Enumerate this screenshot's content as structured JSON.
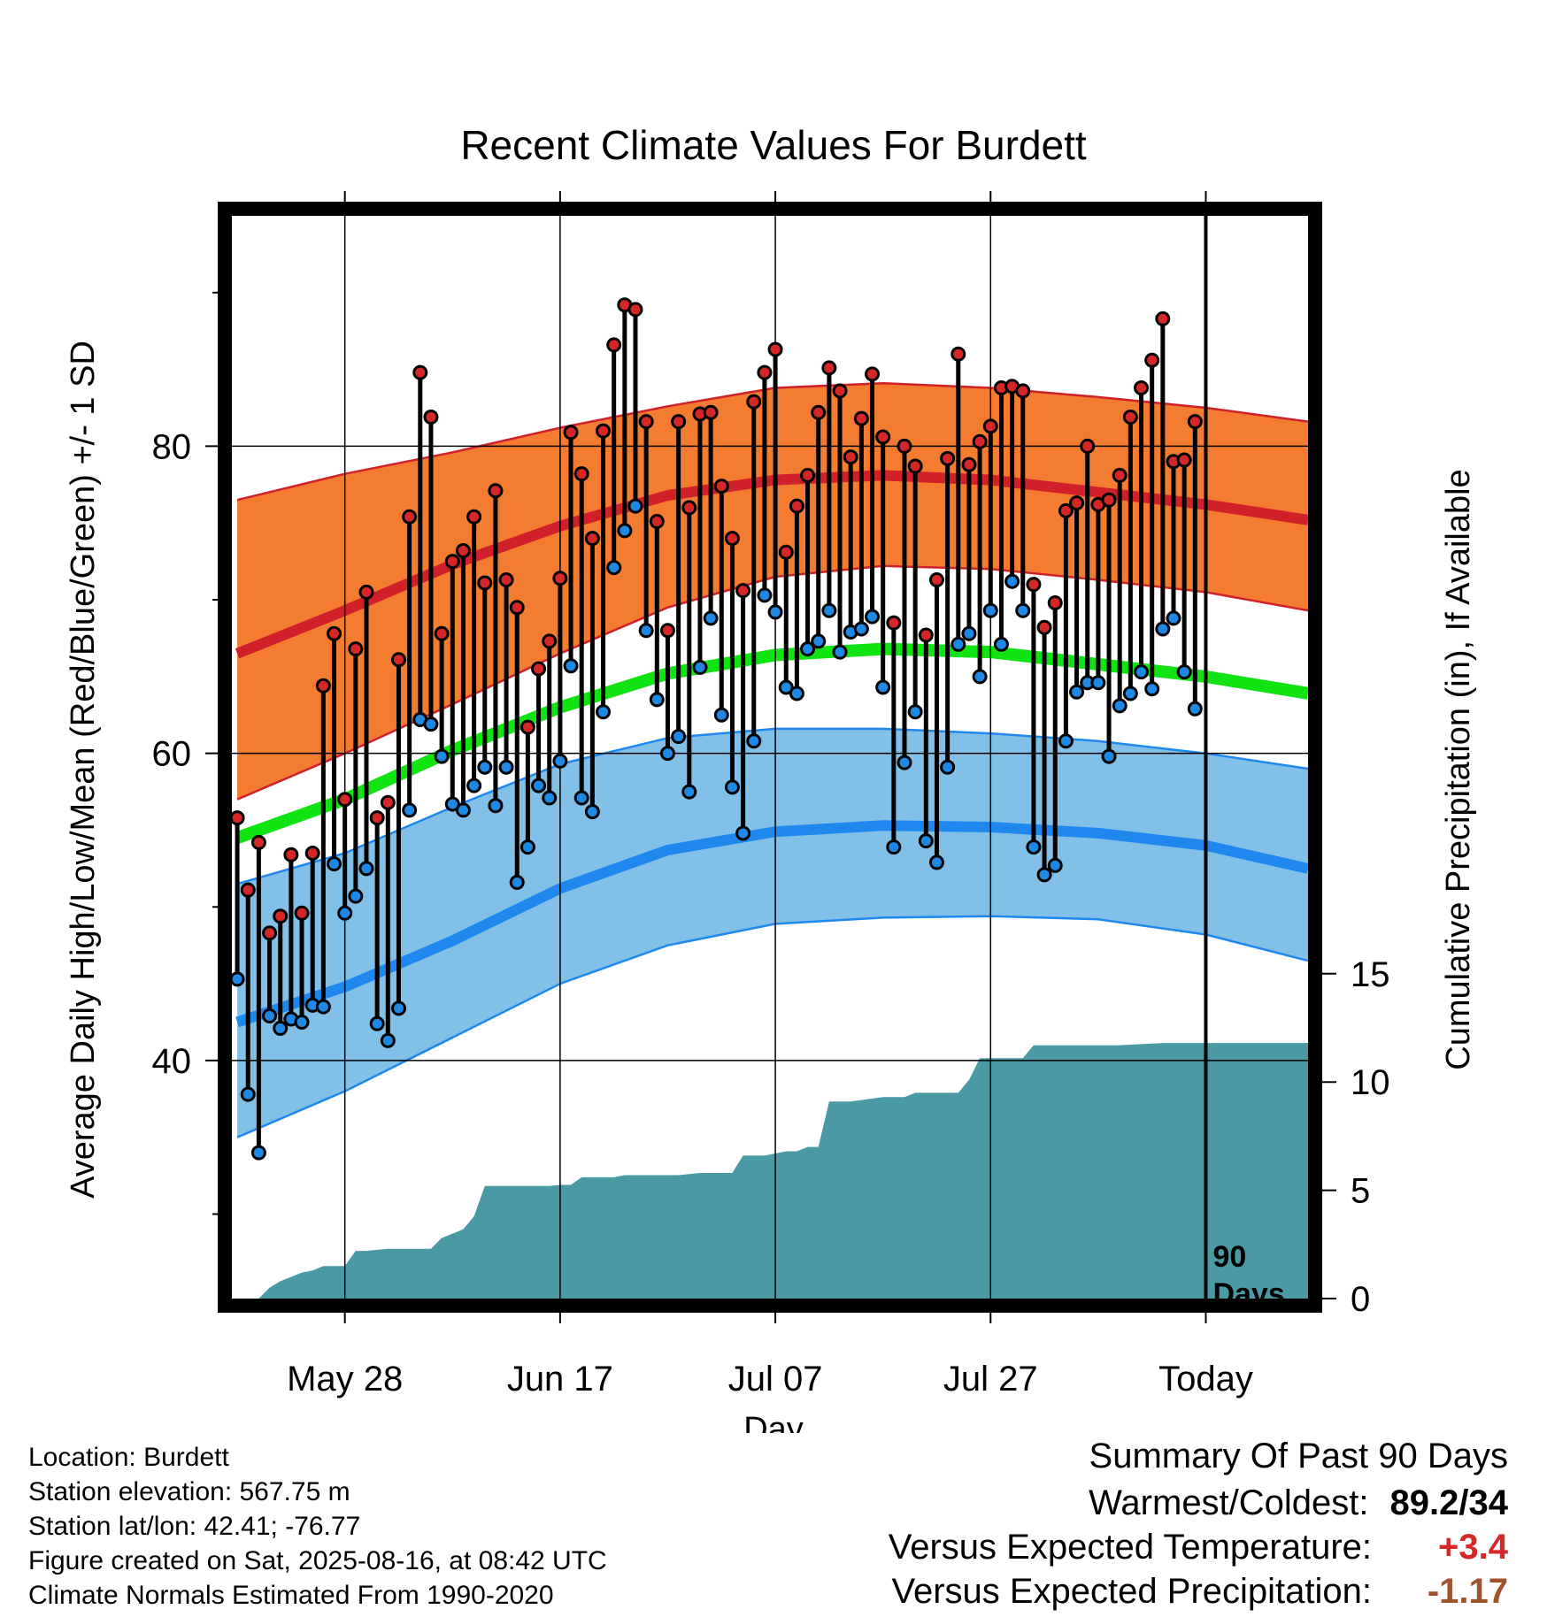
{
  "chart_data": {
    "type": "line",
    "title": "Recent Climate Values For Burdett",
    "xlabel": "Day",
    "ylabel": "Average Daily High/Low/Mean (Red/Blue/Green) +/- 1 SD",
    "y2label": "Cumulative Precipitation (in), If Available",
    "x_tick_labels": [
      "May 28",
      "Jun 17",
      "Jul 07",
      "Jul 27",
      "Today"
    ],
    "x_tick_days": [
      10,
      30,
      50,
      70,
      90
    ],
    "xlim": [
      -0.5,
      99.5
    ],
    "ylim": [
      24.5,
      95
    ],
    "y_ticks": [
      40,
      60,
      80
    ],
    "y_minor_ticks": [
      30,
      50,
      70,
      90
    ],
    "y2_ticks": [
      0,
      5,
      10,
      15
    ],
    "y2_scale": {
      "min": 0,
      "max": 50
    },
    "grid": true,
    "today_marker": {
      "day": 90,
      "label_top": "90",
      "label_bottom": "Days"
    },
    "normals": {
      "days": [
        0,
        10,
        20,
        30,
        40,
        50,
        60,
        70,
        80,
        90,
        99.5
      ],
      "high_mean": [
        66.5,
        69.3,
        72.3,
        74.8,
        76.8,
        77.8,
        78.1,
        77.8,
        77.0,
        76.2,
        75.2
      ],
      "high_upper": [
        76.5,
        78.2,
        79.6,
        81.2,
        82.6,
        83.8,
        84.1,
        83.8,
        83.2,
        82.5,
        81.6
      ],
      "high_lower": [
        57.0,
        60.0,
        63.2,
        66.5,
        69.5,
        71.5,
        72.2,
        72.0,
        71.3,
        70.5,
        69.3
      ],
      "mean": [
        54.5,
        57.0,
        60.2,
        63.0,
        65.2,
        66.4,
        66.8,
        66.6,
        65.8,
        65.0,
        63.9
      ],
      "low_mean": [
        42.5,
        44.8,
        47.8,
        51.2,
        53.7,
        54.9,
        55.3,
        55.2,
        54.8,
        54.0,
        52.5
      ],
      "low_upper": [
        51.5,
        53.5,
        56.5,
        59.3,
        61.0,
        61.6,
        61.6,
        61.3,
        60.8,
        60.0,
        59.0
      ],
      "low_lower": [
        35.0,
        38.0,
        41.5,
        45.0,
        47.5,
        48.9,
        49.3,
        49.4,
        49.2,
        48.2,
        46.5
      ]
    },
    "series": [
      {
        "name": "High",
        "color": "#d62728",
        "values": [
          55.8,
          51.1,
          54.2,
          48.3,
          49.4,
          53.4,
          49.6,
          53.5,
          64.4,
          67.8,
          57.0,
          66.8,
          70.5,
          55.8,
          56.8,
          66.1,
          75.4,
          84.8,
          81.9,
          67.8,
          72.5,
          73.2,
          75.4,
          71.1,
          77.1,
          71.3,
          69.5,
          61.7,
          65.5,
          67.3,
          71.4,
          80.9,
          78.2,
          74.0,
          81.0,
          86.6,
          89.2,
          88.9,
          81.6,
          75.1,
          68.0,
          81.6,
          76.0,
          82.1,
          82.2,
          77.4,
          74.0,
          70.6,
          82.9,
          84.8,
          86.3,
          73.1,
          76.1,
          78.1,
          82.2,
          85.1,
          83.6,
          79.3,
          81.8,
          84.7,
          80.6,
          68.5,
          80.0,
          78.7,
          67.7,
          71.3,
          79.2,
          86.0,
          78.8,
          80.3,
          81.3,
          83.8,
          83.9,
          83.6,
          71.0,
          68.2,
          69.8,
          75.8,
          76.3,
          80.0,
          76.2,
          76.5,
          78.1,
          81.9,
          83.8,
          85.6,
          88.3,
          79.0,
          79.1,
          81.6
        ]
      },
      {
        "name": "Low",
        "color": "#1e88e5",
        "values": [
          45.3,
          37.8,
          34.0,
          42.9,
          42.1,
          42.7,
          42.5,
          43.6,
          43.5,
          52.8,
          49.6,
          50.7,
          52.5,
          42.4,
          41.3,
          43.4,
          56.3,
          62.2,
          61.9,
          59.8,
          56.7,
          56.3,
          57.9,
          59.1,
          56.6,
          59.1,
          51.6,
          53.9,
          57.9,
          57.1,
          59.5,
          65.7,
          57.1,
          56.2,
          62.7,
          72.1,
          74.5,
          76.1,
          68.0,
          63.5,
          60.0,
          61.1,
          57.5,
          65.6,
          68.8,
          62.5,
          57.8,
          54.8,
          60.8,
          70.3,
          69.2,
          64.3,
          63.9,
          66.8,
          67.3,
          69.3,
          66.6,
          67.9,
          68.1,
          68.9,
          64.3,
          53.9,
          59.4,
          62.7,
          54.3,
          52.9,
          59.1,
          67.1,
          67.8,
          65.0,
          69.3,
          67.1,
          71.2,
          69.3,
          53.9,
          52.1,
          52.7,
          60.8,
          64.0,
          64.6,
          64.6,
          59.8,
          63.1,
          63.9,
          65.3,
          64.2,
          68.1,
          68.8,
          65.3,
          62.9
        ]
      },
      {
        "name": "Cumulative Precipitation",
        "color": "#4a9aa5",
        "days": [
          -0.5,
          2,
          3,
          4,
          5,
          6,
          7,
          8,
          9,
          10,
          11,
          12,
          14,
          15,
          16,
          17,
          18,
          19,
          20,
          21,
          22,
          23,
          24,
          25,
          26,
          27,
          28,
          29,
          30,
          31,
          32,
          34,
          35,
          36,
          37,
          38,
          39,
          40,
          41,
          43,
          44,
          45,
          46,
          47,
          48,
          49,
          50,
          51,
          52,
          53,
          54,
          55,
          56,
          57,
          60,
          61,
          62,
          63,
          64,
          65,
          66,
          67,
          68,
          69,
          70,
          71,
          72,
          73,
          74,
          75,
          76,
          82,
          86,
          87,
          99.5
        ],
        "values": [
          0,
          0,
          0.5,
          0.8,
          1.0,
          1.2,
          1.3,
          1.5,
          1.5,
          1.5,
          2.2,
          2.2,
          2.3,
          2.3,
          2.3,
          2.3,
          2.3,
          2.8,
          3.0,
          3.2,
          3.8,
          5.2,
          5.2,
          5.2,
          5.2,
          5.2,
          5.2,
          5.2,
          5.25,
          5.25,
          5.6,
          5.6,
          5.6,
          5.7,
          5.7,
          5.7,
          5.7,
          5.7,
          5.7,
          5.8,
          5.8,
          5.8,
          5.8,
          6.6,
          6.6,
          6.6,
          6.7,
          6.8,
          6.8,
          7.0,
          7.0,
          9.1,
          9.1,
          9.1,
          9.3,
          9.3,
          9.3,
          9.5,
          9.5,
          9.5,
          9.5,
          9.5,
          10.1,
          11.1,
          11.1,
          11.1,
          11.1,
          11.1,
          11.7,
          11.7,
          11.7,
          11.7,
          11.8,
          11.8,
          11.8
        ]
      }
    ],
    "colors": {
      "high_band": "#f47c30",
      "high_line": "#d0202a",
      "mean_line": "#12e312",
      "low_band": "#82c0e8",
      "low_line": "#1e88ef",
      "precip": "#4a9aa5"
    }
  },
  "info": {
    "location": "Location: Burdett",
    "elevation": "Station elevation: 567.75 m",
    "latlon": "Station lat/lon: 42.41; -76.77",
    "created": "Figure created on Sat, 2025-08-16, at 08:42 UTC",
    "normals": "Climate Normals Estimated From 1990-2020"
  },
  "summary": {
    "title": "Summary Of Past 90 Days",
    "warmest_label": "Warmest/Coldest:",
    "warmest_value": "89.2/34",
    "temp_label": "Versus Expected Temperature:",
    "temp_value": "+3.4",
    "temp_color": "#d62728",
    "precip_label": "Versus Expected Precipitation:",
    "precip_value": "-1.17",
    "precip_color": "#a0522d"
  }
}
